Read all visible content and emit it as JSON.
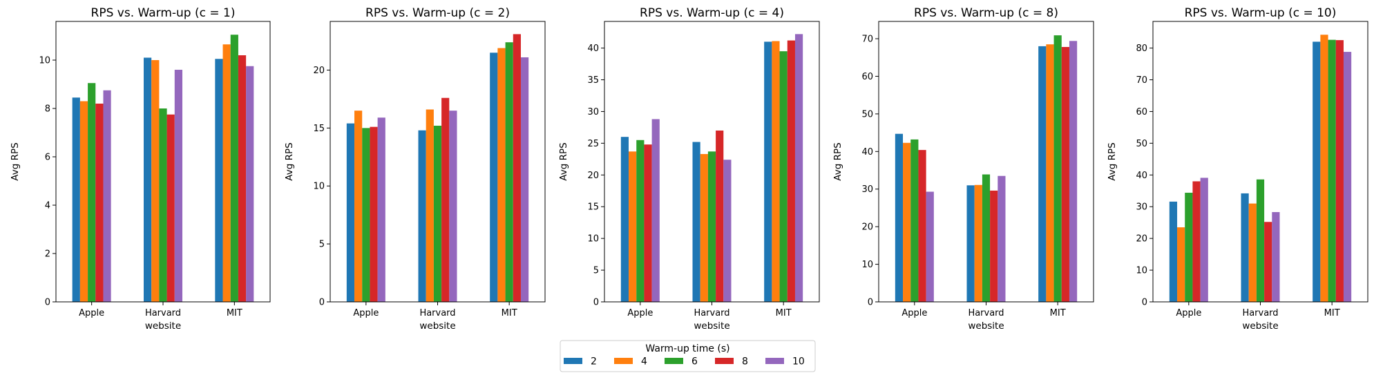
{
  "legend": {
    "title": "Warm-up time (s)",
    "placement": "bottom-center"
  },
  "colors": [
    "#1f77b4",
    "#ff7f0e",
    "#2ca02c",
    "#d62728",
    "#9467bd"
  ],
  "chart_data": [
    {
      "type": "bar",
      "title": "RPS vs. Warm-up (c = 1)",
      "xlabel": "website",
      "ylabel": "Avg RPS",
      "categories": [
        "Apple",
        "Harvard",
        "MIT"
      ],
      "ylim": [
        0,
        11.6
      ],
      "yticks": [
        0,
        2,
        4,
        6,
        8,
        10
      ],
      "series": [
        {
          "name": "2",
          "values": [
            8.45,
            10.1,
            10.05
          ]
        },
        {
          "name": "4",
          "values": [
            8.3,
            10.0,
            10.65
          ]
        },
        {
          "name": "6",
          "values": [
            9.05,
            8.0,
            11.05
          ]
        },
        {
          "name": "8",
          "values": [
            8.2,
            7.75,
            10.2
          ]
        },
        {
          "name": "10",
          "values": [
            8.75,
            9.6,
            9.75
          ]
        }
      ]
    },
    {
      "type": "bar",
      "title": "RPS vs. Warm-up (c = 2)",
      "xlabel": "website",
      "ylabel": "Avg RPS",
      "categories": [
        "Apple",
        "Harvard",
        "MIT"
      ],
      "ylim": [
        0,
        24.2
      ],
      "yticks": [
        0,
        5,
        10,
        15,
        20
      ],
      "series": [
        {
          "name": "2",
          "values": [
            15.4,
            14.8,
            21.5
          ]
        },
        {
          "name": "4",
          "values": [
            16.5,
            16.6,
            21.9
          ]
        },
        {
          "name": "6",
          "values": [
            15.0,
            15.2,
            22.4
          ]
        },
        {
          "name": "8",
          "values": [
            15.1,
            17.6,
            23.1
          ]
        },
        {
          "name": "10",
          "values": [
            15.9,
            16.5,
            21.1
          ]
        }
      ]
    },
    {
      "type": "bar",
      "title": "RPS vs. Warm-up (c = 4)",
      "xlabel": "website",
      "ylabel": "Avg RPS",
      "categories": [
        "Apple",
        "Harvard",
        "MIT"
      ],
      "ylim": [
        0,
        44.2
      ],
      "yticks": [
        0,
        5,
        10,
        15,
        20,
        25,
        30,
        35,
        40
      ],
      "series": [
        {
          "name": "2",
          "values": [
            26.0,
            25.2,
            41.0
          ]
        },
        {
          "name": "4",
          "values": [
            23.7,
            23.3,
            41.1
          ]
        },
        {
          "name": "6",
          "values": [
            25.5,
            23.7,
            39.5
          ]
        },
        {
          "name": "8",
          "values": [
            24.8,
            27.0,
            41.2
          ]
        },
        {
          "name": "10",
          "values": [
            28.8,
            22.4,
            42.2
          ]
        }
      ]
    },
    {
      "type": "bar",
      "title": "RPS vs. Warm-up (c = 8)",
      "xlabel": "website",
      "ylabel": "Avg RPS",
      "categories": [
        "Apple",
        "Harvard",
        "MIT"
      ],
      "ylim": [
        0,
        74.6
      ],
      "yticks": [
        0,
        10,
        20,
        30,
        40,
        50,
        60,
        70
      ],
      "series": [
        {
          "name": "2",
          "values": [
            44.7,
            31.0,
            68.0
          ]
        },
        {
          "name": "4",
          "values": [
            42.3,
            31.1,
            68.5
          ]
        },
        {
          "name": "6",
          "values": [
            43.2,
            33.9,
            70.9
          ]
        },
        {
          "name": "8",
          "values": [
            40.4,
            29.6,
            67.8
          ]
        },
        {
          "name": "10",
          "values": [
            29.3,
            33.5,
            69.4
          ]
        }
      ]
    },
    {
      "type": "bar",
      "title": "RPS vs. Warm-up (c = 10)",
      "xlabel": "website",
      "ylabel": "Avg RPS",
      "categories": [
        "Apple",
        "Harvard",
        "MIT"
      ],
      "ylim": [
        0,
        88.4
      ],
      "yticks": [
        0,
        10,
        20,
        30,
        40,
        50,
        60,
        70,
        80
      ],
      "series": [
        {
          "name": "2",
          "values": [
            31.6,
            34.2,
            82.0
          ]
        },
        {
          "name": "4",
          "values": [
            23.5,
            31.0,
            84.2
          ]
        },
        {
          "name": "6",
          "values": [
            34.4,
            38.6,
            82.6
          ]
        },
        {
          "name": "8",
          "values": [
            38.0,
            25.2,
            82.5
          ]
        },
        {
          "name": "10",
          "values": [
            39.1,
            28.3,
            78.8
          ]
        }
      ]
    }
  ]
}
